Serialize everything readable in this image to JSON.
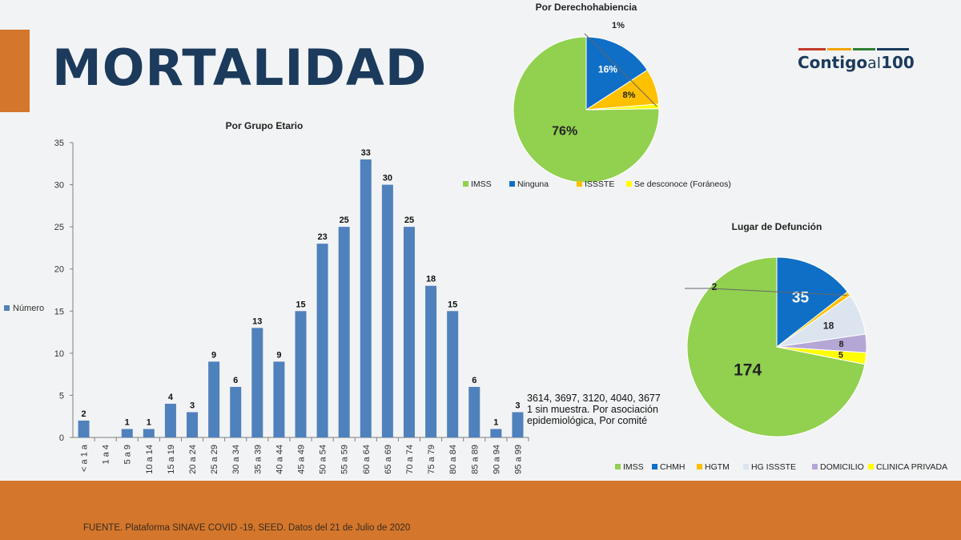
{
  "header": {
    "title": "MORTALIDAD",
    "logo": {
      "text_a": "Contigo",
      "text_b": "al",
      "text_c": "100"
    }
  },
  "colors": {
    "accent_orange": "#d4772c",
    "title_navy": "#1b3a5c",
    "bar_blue": "#4f81bd",
    "imss_green": "#92d050",
    "blue": "#0f6fc6",
    "amber": "#ffc000",
    "yellow": "#ffff00",
    "light_blue_grey": "#dce4ef",
    "lavender": "#b4a7d6"
  },
  "chart_data": [
    {
      "type": "bar",
      "title": "Por Grupo Etario",
      "legend": {
        "label": "Número",
        "position": "left"
      },
      "categories": [
        "< a 1 a",
        "1 a 4",
        "5 a 9",
        "10 a 14",
        "15 a 19",
        "20 a 24",
        "25 a 29",
        "30 a 34",
        "35 a 39",
        "40 a 44",
        "45 a 49",
        "50 a 54",
        "55 a 59",
        "60 a 64",
        "65 a 69",
        "70 a 74",
        "75 a 79",
        "80 a 84",
        "85 a 89",
        "90 a 94",
        "95 a 99"
      ],
      "values": [
        2,
        null,
        1,
        1,
        4,
        3,
        9,
        6,
        13,
        9,
        15,
        23,
        25,
        33,
        30,
        25,
        18,
        15,
        6,
        1,
        3
      ],
      "ylim": [
        0,
        35
      ],
      "yticks": [
        0,
        5,
        10,
        15,
        20,
        25,
        30,
        35
      ],
      "grid": false
    },
    {
      "type": "pie",
      "title": "Por Derechohabiencia",
      "slices": [
        {
          "label": "IMSS",
          "value": 76,
          "text": "76%",
          "color": "#92d050"
        },
        {
          "label": "Ninguna",
          "value": 16,
          "text": "16%",
          "color": "#0f6fc6"
        },
        {
          "label": "ISSSTE",
          "value": 8,
          "text": "8%",
          "color": "#ffc000"
        },
        {
          "label": "Se desconoce (Foráneos)",
          "value": 1,
          "text": "1%",
          "color": "#ffff00"
        }
      ],
      "legend_position": "bottom"
    },
    {
      "type": "pie",
      "title": "Lugar de Defunción",
      "slices": [
        {
          "label": "IMSS",
          "value": 174,
          "text": "174",
          "color": "#92d050"
        },
        {
          "label": "CHMH",
          "value": 35,
          "text": "35",
          "color": "#0f6fc6"
        },
        {
          "label": "HGTM",
          "value": 2,
          "text": "2",
          "color": "#ffc000"
        },
        {
          "label": "HG ISSSTE",
          "value": 18,
          "text": "18",
          "color": "#dce4ef"
        },
        {
          "label": "DOMICILIO",
          "value": 8,
          "text": "8",
          "color": "#b4a7d6"
        },
        {
          "label": "CLINICA PRIVADA",
          "value": 5,
          "text": "5",
          "color": "#ffff00"
        }
      ],
      "legend_position": "bottom"
    }
  ],
  "note": {
    "line1": "3614, 3697, 3120, 4040, 3677",
    "line2": "1 sin muestra.  Por asociación",
    "line3": "epidemiológica, Por comité"
  },
  "footer": {
    "source": "FUENTE. Plataforma SINAVE COVID -19, SEED. Datos del 21 de Julio de 2020"
  }
}
